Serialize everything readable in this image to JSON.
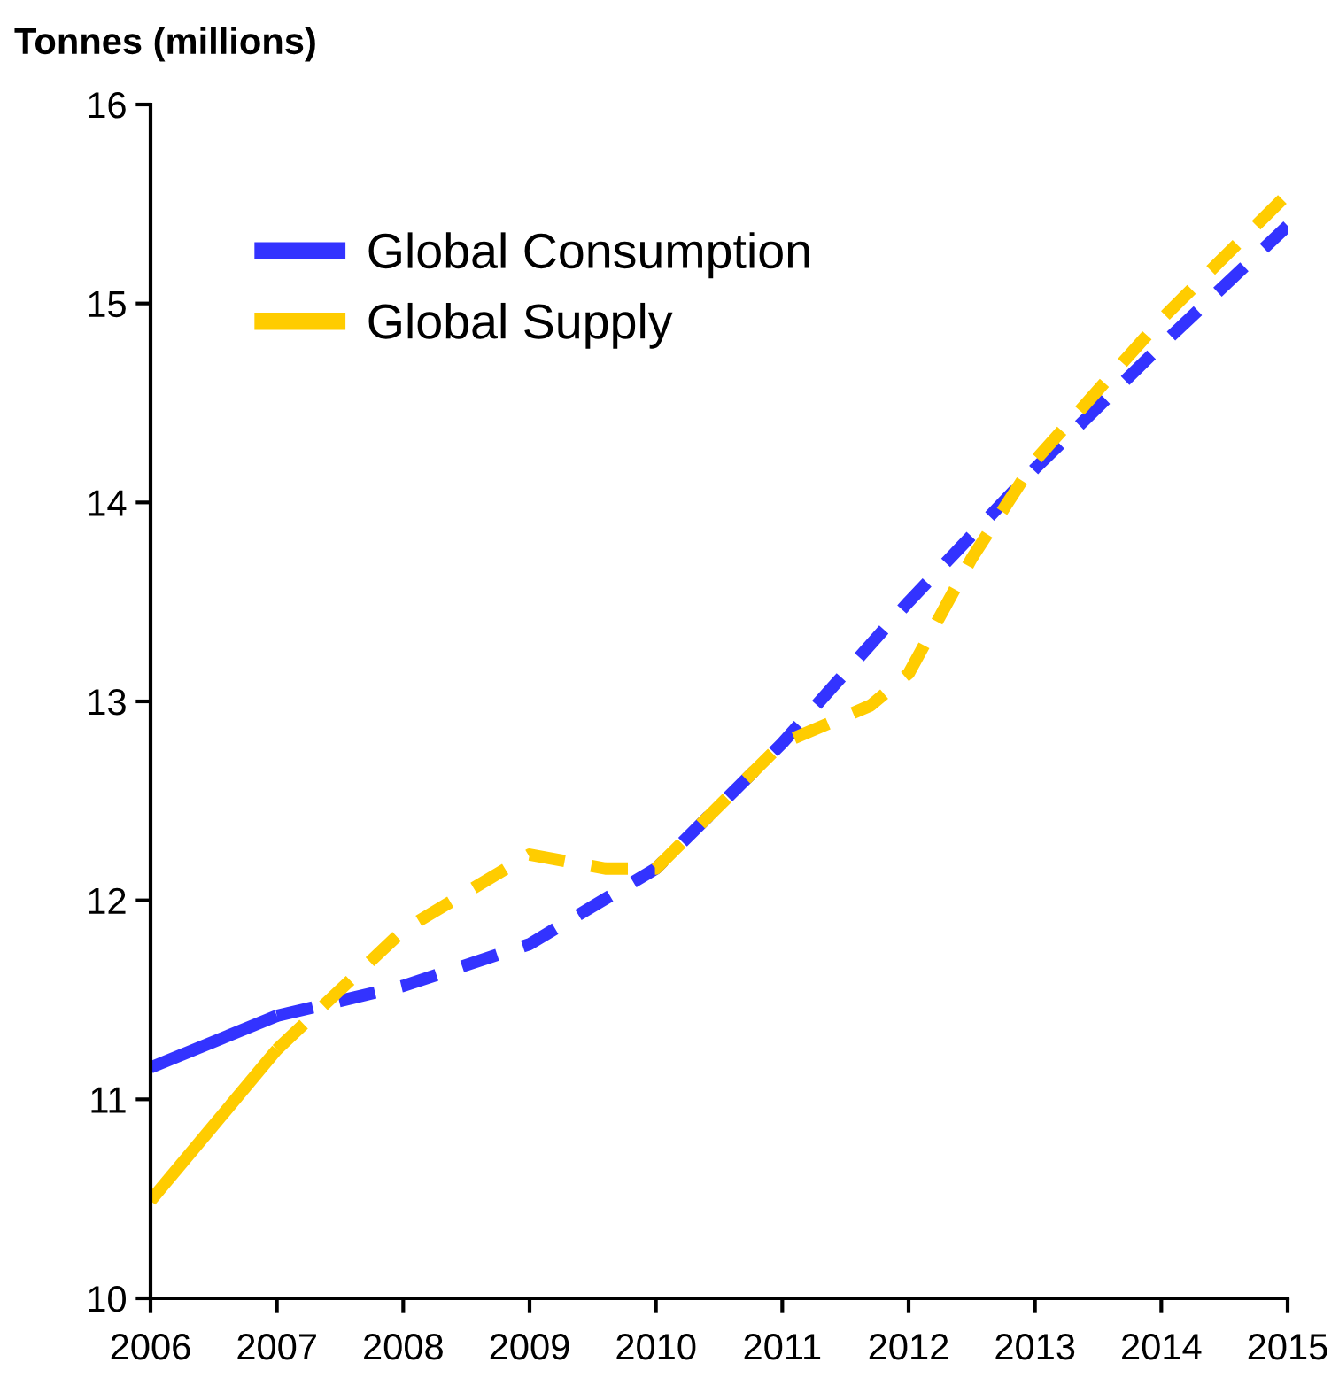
{
  "chart_data": {
    "type": "line",
    "ylabel": "Tonnes (millions)",
    "series": [
      {
        "name": "Global Consumption",
        "color": "#3333ff",
        "line_style": "solid",
        "x": [
          2006,
          2007
        ],
        "values": [
          11.16,
          11.42
        ]
      },
      {
        "name": "Global Supply",
        "color": "#ffcc00",
        "line_style": "solid",
        "x": [
          2006,
          2007
        ],
        "values": [
          10.49,
          11.25
        ]
      },
      {
        "color": "#3333ff",
        "line_style": "dashed",
        "x": [
          2007,
          2008,
          2009,
          2010,
          2011,
          2012,
          2013,
          2014,
          2015
        ],
        "values": [
          11.42,
          11.57,
          11.78,
          12.16,
          12.79,
          13.5,
          14.17,
          14.79,
          15.39
        ]
      },
      {
        "color": "#ffcc00",
        "line_style": "dashed",
        "x": [
          2007,
          2008,
          2009,
          2009.6,
          2010,
          2011,
          2011.7,
          2012,
          2012.5,
          2013,
          2014,
          2015
        ],
        "values": [
          11.25,
          11.85,
          12.23,
          12.16,
          12.16,
          12.79,
          12.98,
          13.14,
          13.72,
          14.21,
          14.92,
          15.55
        ]
      }
    ],
    "xlim": [
      2006,
      2015
    ],
    "xticks": [
      2006,
      2007,
      2008,
      2009,
      2010,
      2011,
      2012,
      2013,
      2014,
      2015
    ],
    "ylim": [
      10,
      16
    ],
    "yticks": [
      10,
      11,
      12,
      13,
      14,
      15,
      16
    ],
    "grid": false,
    "legend": "top left",
    "marker": "none"
  }
}
